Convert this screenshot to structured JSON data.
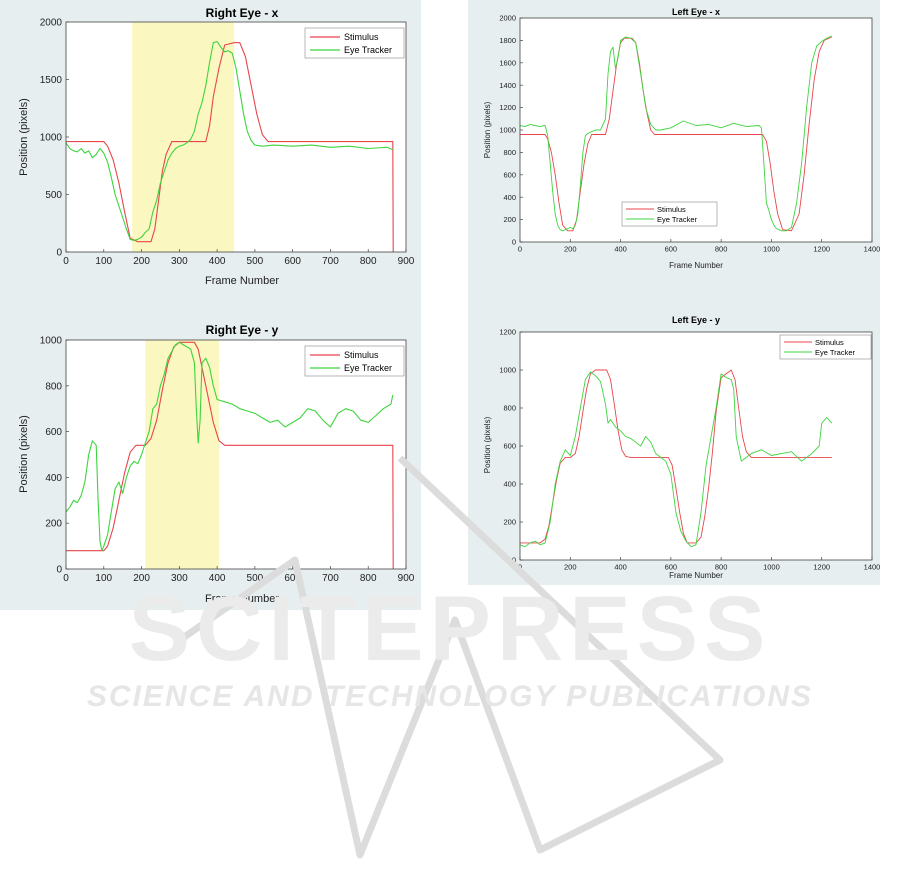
{
  "watermark": {
    "logo": "SCITEPRESS",
    "tagline": "SCIENCE AND TECHNOLOGY PUBLICATIONS",
    "color": "#e2e2e2"
  },
  "colors": {
    "stimulus": "#e8454b",
    "tracker": "#3ed43e",
    "highlight": "#fbf7c0",
    "panel": "#e6eef0"
  },
  "chart_data": [
    {
      "id": "right-x",
      "type": "line",
      "title": "Right Eye - x",
      "xlabel": "Frame Number",
      "ylabel": "Position (pixels)",
      "xlim": [
        0,
        900
      ],
      "ylim": [
        0,
        2000
      ],
      "xticks": [
        0,
        100,
        200,
        300,
        400,
        500,
        600,
        700,
        800,
        900
      ],
      "yticks": [
        0,
        500,
        1000,
        1500,
        2000
      ],
      "highlight": [
        175,
        445
      ],
      "legend_position": "top-right",
      "series": [
        {
          "name": "Stimulus",
          "color": "#e8454b",
          "x": [
            0,
            100,
            110,
            125,
            140,
            155,
            170,
            190,
            225,
            235,
            245,
            255,
            265,
            280,
            290,
            310,
            370,
            380,
            390,
            405,
            420,
            445,
            460,
            475,
            490,
            505,
            520,
            535,
            865,
            866
          ],
          "y": [
            960,
            960,
            920,
            800,
            600,
            350,
            120,
            90,
            90,
            200,
            450,
            700,
            850,
            960,
            960,
            960,
            960,
            1100,
            1350,
            1600,
            1800,
            1820,
            1820,
            1700,
            1450,
            1200,
            1020,
            960,
            960,
            0
          ]
        },
        {
          "name": "Eye Tracker",
          "color": "#3ed43e",
          "x": [
            0,
            10,
            20,
            30,
            40,
            50,
            60,
            70,
            80,
            90,
            100,
            110,
            120,
            130,
            140,
            150,
            160,
            170,
            180,
            190,
            200,
            210,
            220,
            230,
            240,
            250,
            260,
            270,
            280,
            290,
            300,
            310,
            320,
            330,
            340,
            350,
            360,
            370,
            380,
            390,
            400,
            410,
            420,
            430,
            440,
            450,
            460,
            470,
            480,
            490,
            500,
            520,
            550,
            600,
            650,
            700,
            750,
            800,
            850,
            865
          ],
          "y": [
            950,
            900,
            880,
            870,
            900,
            860,
            880,
            820,
            850,
            900,
            860,
            780,
            650,
            500,
            400,
            300,
            200,
            110,
            100,
            110,
            130,
            170,
            200,
            350,
            450,
            600,
            700,
            800,
            860,
            900,
            920,
            930,
            950,
            980,
            1050,
            1200,
            1300,
            1450,
            1650,
            1820,
            1830,
            1780,
            1740,
            1750,
            1730,
            1600,
            1400,
            1200,
            1050,
            970,
            930,
            920,
            930,
            920,
            930,
            910,
            920,
            900,
            910,
            890
          ]
        }
      ]
    },
    {
      "id": "right-y",
      "type": "line",
      "title": "Right Eye - y",
      "xlabel": "Frame Number",
      "ylabel": "Position (pixels)",
      "xlim": [
        0,
        900
      ],
      "ylim": [
        0,
        1000
      ],
      "xticks": [
        0,
        100,
        200,
        300,
        400,
        500,
        600,
        700,
        800,
        900
      ],
      "yticks": [
        0,
        200,
        400,
        600,
        800,
        1000
      ],
      "highlight": [
        210,
        405
      ],
      "legend_position": "top-right",
      "series": [
        {
          "name": "Stimulus",
          "color": "#e8454b",
          "x": [
            0,
            100,
            110,
            125,
            140,
            155,
            170,
            185,
            210,
            225,
            240,
            255,
            270,
            285,
            300,
            340,
            350,
            360,
            375,
            390,
            405,
            420,
            865,
            866
          ],
          "y": [
            80,
            80,
            100,
            180,
            300,
            420,
            510,
            540,
            540,
            570,
            650,
            780,
            900,
            970,
            990,
            990,
            960,
            880,
            760,
            640,
            560,
            540,
            540,
            0
          ]
        },
        {
          "name": "Eye Tracker",
          "color": "#3ed43e",
          "x": [
            0,
            10,
            20,
            30,
            40,
            50,
            60,
            70,
            80,
            85,
            90,
            95,
            100,
            110,
            120,
            130,
            140,
            150,
            160,
            170,
            180,
            190,
            200,
            210,
            220,
            230,
            240,
            250,
            260,
            270,
            280,
            290,
            300,
            310,
            320,
            330,
            340,
            345,
            350,
            355,
            360,
            370,
            380,
            390,
            400,
            420,
            440,
            460,
            480,
            500,
            520,
            540,
            560,
            580,
            600,
            620,
            640,
            660,
            680,
            700,
            720,
            740,
            760,
            780,
            800,
            820,
            840,
            860,
            865
          ],
          "y": [
            250,
            270,
            300,
            290,
            320,
            380,
            500,
            560,
            540,
            300,
            120,
            80,
            100,
            150,
            250,
            350,
            380,
            330,
            400,
            450,
            470,
            460,
            500,
            550,
            600,
            700,
            720,
            800,
            850,
            920,
            950,
            980,
            990,
            980,
            970,
            960,
            900,
            700,
            550,
            650,
            900,
            920,
            880,
            800,
            740,
            730,
            720,
            700,
            690,
            680,
            660,
            640,
            650,
            620,
            640,
            660,
            700,
            690,
            650,
            620,
            680,
            700,
            690,
            650,
            640,
            670,
            700,
            720,
            760
          ]
        }
      ]
    },
    {
      "id": "left-x",
      "type": "line",
      "title": "Left Eye - x",
      "xlabel": "Frame Number",
      "ylabel": "Position (pixels)",
      "xlim": [
        0,
        1400
      ],
      "ylim": [
        0,
        2000
      ],
      "xticks": [
        0,
        200,
        400,
        600,
        800,
        1000,
        1200,
        1400
      ],
      "yticks": [
        0,
        200,
        400,
        600,
        800,
        1000,
        1200,
        1400,
        1600,
        1800,
        2000
      ],
      "legend_position": "bottom-center",
      "series": [
        {
          "name": "Stimulus",
          "color": "#e8454b",
          "x": [
            0,
            100,
            110,
            125,
            140,
            155,
            170,
            190,
            210,
            225,
            240,
            255,
            270,
            285,
            300,
            340,
            355,
            370,
            385,
            400,
            415,
            445,
            460,
            475,
            490,
            505,
            520,
            535,
            550,
            965,
            980,
            995,
            1010,
            1025,
            1045,
            1080,
            1110,
            1130,
            1150,
            1170,
            1190,
            1210,
            1240
          ],
          "y": [
            960,
            960,
            920,
            800,
            600,
            350,
            150,
            100,
            100,
            200,
            450,
            700,
            880,
            960,
            960,
            960,
            1100,
            1350,
            1600,
            1780,
            1820,
            1820,
            1780,
            1600,
            1350,
            1150,
            1000,
            960,
            960,
            960,
            900,
            700,
            450,
            250,
            110,
            100,
            250,
            600,
            1050,
            1450,
            1700,
            1800,
            1830
          ]
        },
        {
          "name": "Eye Tracker",
          "color": "#3ed43e",
          "x": [
            0,
            20,
            40,
            60,
            80,
            100,
            110,
            120,
            130,
            140,
            150,
            160,
            170,
            180,
            190,
            200,
            210,
            220,
            230,
            240,
            250,
            260,
            270,
            280,
            290,
            300,
            320,
            340,
            350,
            360,
            370,
            380,
            390,
            400,
            420,
            440,
            460,
            480,
            500,
            520,
            540,
            560,
            600,
            650,
            700,
            750,
            800,
            850,
            900,
            950,
            960,
            970,
            980,
            990,
            1000,
            1010,
            1020,
            1040,
            1060,
            1080,
            1100,
            1120,
            1140,
            1160,
            1180,
            1200,
            1220,
            1240
          ],
          "y": [
            1040,
            1030,
            1050,
            1040,
            1030,
            1040,
            950,
            700,
            450,
            250,
            150,
            110,
            100,
            110,
            120,
            130,
            120,
            150,
            250,
            500,
            800,
            950,
            970,
            980,
            990,
            1000,
            1000,
            1100,
            1500,
            1700,
            1740,
            1550,
            1650,
            1800,
            1830,
            1820,
            1780,
            1500,
            1200,
            1050,
            1000,
            1000,
            1020,
            1080,
            1040,
            1050,
            1020,
            1060,
            1030,
            1040,
            1020,
            700,
            350,
            280,
            200,
            150,
            120,
            100,
            100,
            130,
            350,
            700,
            1200,
            1600,
            1750,
            1790,
            1820,
            1840
          ]
        }
      ]
    },
    {
      "id": "left-y",
      "type": "line",
      "title": "Left Eye - y",
      "xlabel": "Frame Number",
      "ylabel": "Position (pixels)",
      "xlim": [
        0,
        1400
      ],
      "ylim": [
        0,
        1200
      ],
      "xticks": [
        0,
        200,
        400,
        600,
        800,
        1000,
        1200,
        1400
      ],
      "yticks": [
        0,
        200,
        400,
        600,
        800,
        1000,
        1200
      ],
      "legend_position": "top-right",
      "series": [
        {
          "name": "Stimulus",
          "color": "#e8454b",
          "x": [
            0,
            80,
            100,
            115,
            130,
            145,
            160,
            180,
            200,
            220,
            235,
            250,
            265,
            280,
            300,
            345,
            360,
            375,
            390,
            405,
            420,
            440,
            590,
            605,
            620,
            635,
            650,
            665,
            700,
            720,
            735,
            750,
            765,
            780,
            800,
            840,
            855,
            870,
            885,
            900,
            920,
            1240
          ],
          "y": [
            90,
            90,
            110,
            180,
            300,
            420,
            510,
            540,
            540,
            560,
            650,
            780,
            900,
            980,
            1000,
            1000,
            950,
            820,
            680,
            580,
            545,
            540,
            540,
            500,
            380,
            250,
            140,
            90,
            90,
            120,
            230,
            380,
            560,
            780,
            960,
            1000,
            950,
            800,
            650,
            570,
            540,
            540
          ]
        },
        {
          "name": "Eye Tracker",
          "color": "#3ed43e",
          "x": [
            0,
            20,
            40,
            60,
            80,
            100,
            120,
            140,
            160,
            180,
            200,
            220,
            240,
            260,
            280,
            300,
            320,
            340,
            350,
            360,
            380,
            400,
            420,
            440,
            460,
            480,
            500,
            520,
            540,
            560,
            580,
            600,
            620,
            640,
            660,
            680,
            700,
            720,
            740,
            760,
            780,
            800,
            820,
            840,
            850,
            860,
            880,
            900,
            920,
            960,
            1000,
            1040,
            1080,
            1120,
            1160,
            1190,
            1200,
            1220,
            1240
          ],
          "y": [
            80,
            70,
            90,
            100,
            80,
            90,
            200,
            400,
            520,
            580,
            550,
            650,
            800,
            950,
            990,
            970,
            940,
            820,
            720,
            740,
            700,
            680,
            650,
            640,
            620,
            600,
            650,
            620,
            560,
            540,
            520,
            450,
            250,
            150,
            100,
            70,
            80,
            250,
            500,
            650,
            800,
            980,
            960,
            950,
            900,
            650,
            520,
            540,
            560,
            580,
            550,
            560,
            570,
            520,
            560,
            600,
            720,
            750,
            720
          ]
        }
      ]
    }
  ]
}
